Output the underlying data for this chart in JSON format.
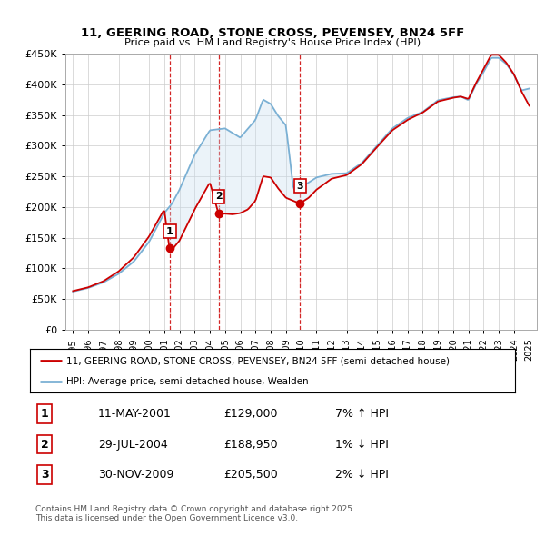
{
  "title": "11, GEERING ROAD, STONE CROSS, PEVENSEY, BN24 5FF",
  "subtitle": "Price paid vs. HM Land Registry's House Price Index (HPI)",
  "legend_line1": "11, GEERING ROAD, STONE CROSS, PEVENSEY, BN24 5FF (semi-detached house)",
  "legend_line2": "HPI: Average price, semi-detached house, Wealden",
  "footnote": "Contains HM Land Registry data © Crown copyright and database right 2025.\nThis data is licensed under the Open Government Licence v3.0.",
  "sales": [
    {
      "num": 1,
      "date": "11-MAY-2001",
      "price": "£129,000",
      "hpi": "7% ↑ HPI",
      "x": 2001.36
    },
    {
      "num": 2,
      "date": "29-JUL-2004",
      "price": "£188,950",
      "hpi": "1% ↓ HPI",
      "x": 2004.57
    },
    {
      "num": 3,
      "date": "30-NOV-2009",
      "price": "£205,500",
      "hpi": "2% ↓ HPI",
      "x": 2009.92
    }
  ],
  "sale_values_actual": [
    129000,
    188950,
    205500
  ],
  "ylim": [
    0,
    450000
  ],
  "yticks": [
    0,
    50000,
    100000,
    150000,
    200000,
    250000,
    300000,
    350000,
    400000,
    450000
  ],
  "ytick_labels": [
    "£0",
    "£50K",
    "£100K",
    "£150K",
    "£200K",
    "£250K",
    "£300K",
    "£350K",
    "£400K",
    "£450K"
  ],
  "xlim": [
    1994.5,
    2025.5
  ],
  "xticks": [
    1995,
    1996,
    1997,
    1998,
    1999,
    2000,
    2001,
    2002,
    2003,
    2004,
    2005,
    2006,
    2007,
    2008,
    2009,
    2010,
    2011,
    2012,
    2013,
    2014,
    2015,
    2016,
    2017,
    2018,
    2019,
    2020,
    2021,
    2022,
    2023,
    2024,
    2025
  ],
  "red_line_color": "#cc0000",
  "blue_line_color": "#7ab0d4",
  "blue_fill_color": "#c8dff0",
  "vline_color": "#cc0000",
  "background_color": "#ffffff",
  "grid_color": "#cccccc"
}
